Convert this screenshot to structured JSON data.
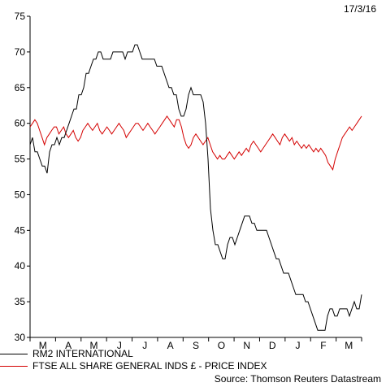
{
  "chart_data": {
    "type": "line",
    "date_label": "17/3/16",
    "ylim": [
      30,
      75
    ],
    "y_ticks": [
      30,
      35,
      40,
      45,
      50,
      55,
      60,
      65,
      70,
      75
    ],
    "x_ticks": [
      "M",
      "A",
      "M",
      "J",
      "J",
      "A",
      "S",
      "O",
      "N",
      "D",
      "J",
      "F",
      "M"
    ],
    "colors": {
      "rm2": "#000000",
      "ftse": "#d40000"
    },
    "series": [
      {
        "name": "RM2 INTERNATIONAL",
        "color": "#000000",
        "values": [
          57,
          58,
          56,
          56,
          55,
          54,
          54,
          53,
          56,
          57,
          57,
          58,
          57,
          58,
          58,
          59,
          60,
          61,
          62,
          62,
          64,
          64,
          65,
          67,
          67,
          68,
          69,
          69,
          70,
          70,
          69,
          69,
          69,
          69,
          70,
          70,
          70,
          70,
          70,
          69,
          70,
          70,
          70,
          71,
          71,
          70,
          69,
          69,
          69,
          69,
          69,
          69,
          68,
          68,
          68,
          67,
          66,
          65,
          65,
          64,
          64,
          62,
          61,
          61,
          62,
          64,
          65,
          64,
          64,
          64,
          64,
          63,
          60,
          55,
          48,
          45,
          43,
          43,
          42,
          41,
          41,
          43,
          44,
          44,
          43,
          44,
          45,
          46,
          47,
          47,
          47,
          46,
          46,
          45,
          45,
          45,
          45,
          45,
          44,
          43,
          42,
          41,
          41,
          40,
          39,
          39,
          39,
          38,
          37,
          36,
          36,
          36,
          36,
          35,
          35,
          34,
          33,
          32,
          31,
          31,
          31,
          31,
          33,
          34,
          34,
          33,
          33,
          34,
          34,
          34,
          34,
          33,
          34,
          35,
          34,
          34,
          36
        ]
      },
      {
        "name": "FTSE ALL SHARE GENERAL INDS £ - PRICE INDEX",
        "color": "#d40000",
        "values": [
          59.5,
          60,
          60.5,
          60,
          59,
          58,
          57,
          58,
          58.5,
          59,
          59.5,
          59.5,
          58.5,
          59,
          59.5,
          58.5,
          58,
          58.5,
          59,
          58,
          57.5,
          58,
          59,
          59.5,
          60,
          59.5,
          59,
          59.5,
          60,
          59,
          58.5,
          59,
          59.5,
          59,
          58.5,
          59,
          59.5,
          60,
          59.5,
          59,
          58,
          58.5,
          59,
          59.5,
          60,
          60,
          59.5,
          59,
          59.5,
          60,
          59.5,
          59,
          58.5,
          59,
          59.5,
          60,
          60.5,
          61,
          60.5,
          60,
          59.5,
          60.5,
          60.5,
          59.5,
          58,
          57,
          56.5,
          57,
          58,
          58.5,
          58,
          57.5,
          57,
          57.5,
          58,
          57,
          56,
          55.5,
          55,
          55.5,
          55,
          55,
          55.5,
          56,
          55.5,
          55,
          55.5,
          56,
          55.5,
          56,
          56.5,
          56,
          57,
          57.5,
          57,
          56.5,
          56,
          56.5,
          57,
          57.5,
          58,
          58.5,
          58,
          57.5,
          57,
          58,
          58.5,
          58,
          57.5,
          58,
          57,
          57.5,
          57,
          56.5,
          57,
          56.5,
          57,
          56.5,
          56,
          56.5,
          56,
          56.5,
          56,
          55.5,
          54.5,
          54,
          53.5,
          55,
          56,
          57,
          58,
          58.5,
          59,
          59.5,
          59,
          59.5,
          60,
          60.5,
          61
        ]
      }
    ],
    "legend": [
      {
        "label": "RM2 INTERNATIONAL",
        "color": "#000000"
      },
      {
        "label": "FTSE ALL SHARE GENERAL INDS £ - PRICE INDEX",
        "color": "#d40000"
      }
    ],
    "source": "Source: Thomson Reuters Datastream"
  }
}
